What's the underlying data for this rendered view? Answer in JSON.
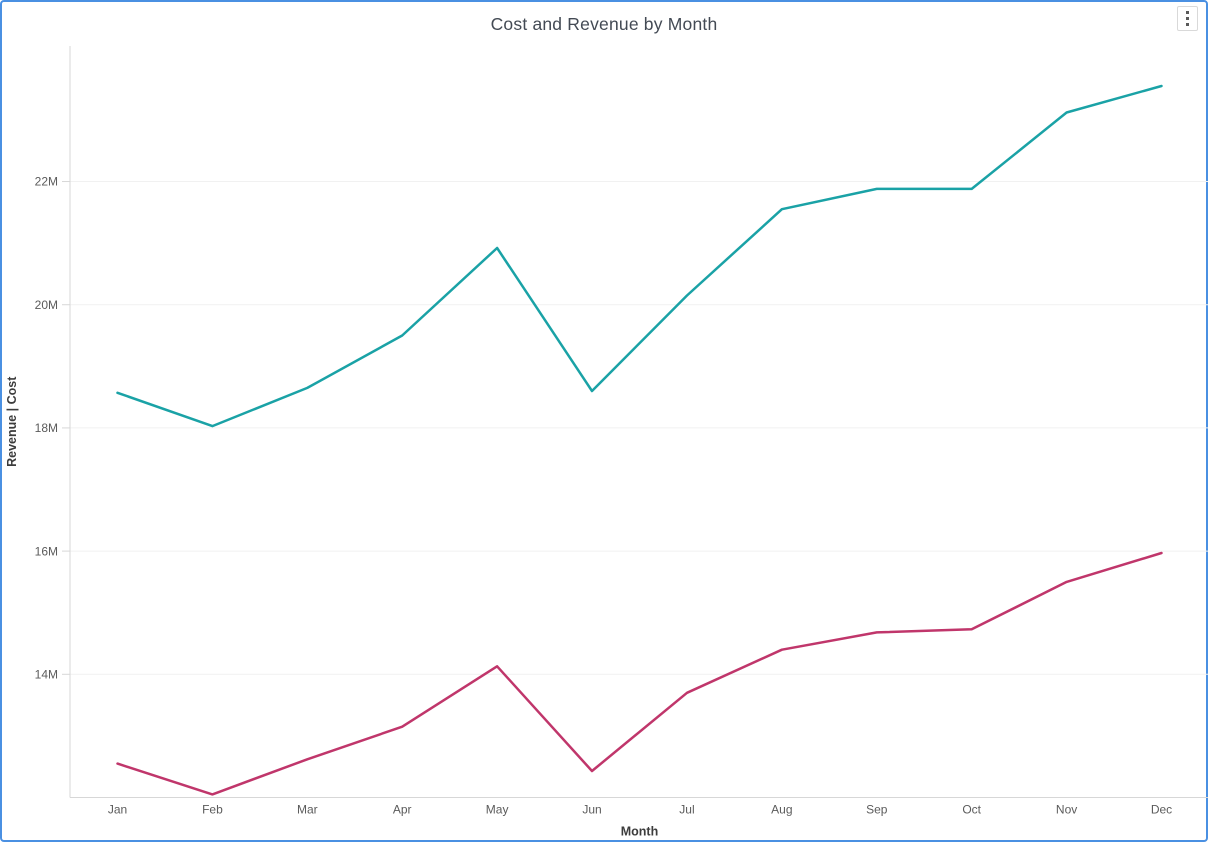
{
  "window": {
    "border_color": "#4A90E2",
    "background_color": "#ffffff"
  },
  "header": {
    "title": "Cost and Revenue by Month"
  },
  "chart_data": {
    "type": "line",
    "title": "Cost and Revenue by Month",
    "categories": [
      "Jan",
      "Feb",
      "Mar",
      "Apr",
      "May",
      "Jun",
      "Jul",
      "Aug",
      "Sep",
      "Oct",
      "Nov",
      "Dec"
    ],
    "series": [
      {
        "name": "Revenue",
        "color": "#1AA2A6",
        "values": [
          18.57,
          18.03,
          18.65,
          19.5,
          20.92,
          18.6,
          20.15,
          21.55,
          21.88,
          21.88,
          23.12,
          23.55
        ]
      },
      {
        "name": "Cost",
        "color": "#C0366B",
        "values": [
          12.55,
          12.05,
          12.62,
          13.15,
          14.13,
          12.43,
          13.7,
          14.4,
          14.68,
          14.73,
          15.5,
          15.97
        ]
      }
    ],
    "unit": "M",
    "xlabel": "Month",
    "ylabel": "Revenue | Cost",
    "ylim": [
      12,
      24.2
    ],
    "y_tick_values": [
      14,
      16,
      18,
      20,
      22
    ],
    "y_tick_labels": [
      "14M",
      "16M",
      "18M",
      "20M",
      "22M"
    ],
    "grid": "horizontal-faint",
    "legend": "none",
    "axis_color": "#d7d7d7",
    "grid_color": "#f1f1f1",
    "tick_label_color": "#5b5b5b",
    "axis_title_color": "#3c3c3c"
  }
}
